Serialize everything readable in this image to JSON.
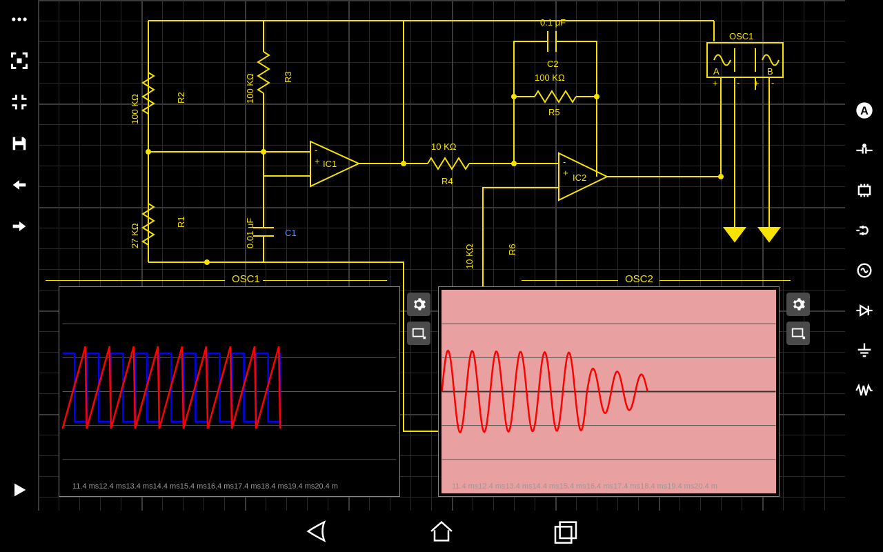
{
  "circuit": {
    "wire_color": "#f7e200",
    "components": {
      "R1": {
        "label": "R1",
        "value": "27 KΩ"
      },
      "R2": {
        "label": "R2",
        "value": "100 KΩ"
      },
      "R3": {
        "label": "R3",
        "value": "100 KΩ"
      },
      "R4": {
        "label": "R4",
        "value": "10 KΩ"
      },
      "R5": {
        "label": "R5",
        "value": "100 KΩ"
      },
      "R6": {
        "label": "R6",
        "value": "10 KΩ"
      },
      "C1": {
        "label": "C1",
        "value": "0.01 μF"
      },
      "C2": {
        "label": "C2",
        "value": "0.1 μF"
      },
      "IC1": {
        "label": "IC1"
      },
      "IC2": {
        "label": "IC2"
      },
      "OSC1": {
        "label": "OSC1",
        "ch_a": "A",
        "ch_b": "B",
        "plus": "+",
        "minus": "-"
      }
    }
  },
  "osc1": {
    "title": "OSC1",
    "bg": "#000000",
    "trace_a_color": "#ff0000",
    "trace_b_color": "#0000ff",
    "grid_color": "#555555",
    "time_labels": [
      "11.4 ms",
      "12.4 ms",
      "13.4 ms",
      "14.4 ms",
      "15.4 ms",
      "16.4 ms",
      "17.4 ms",
      "18.4 ms",
      "19.4 ms",
      "20.4 m"
    ],
    "sawtooth_cycles": 8.5,
    "square_cycles": 8.5,
    "amplitude": 50
  },
  "osc2": {
    "title": "OSC2",
    "bg": "#e8a0a0",
    "trace_color": "#ff0000",
    "grid_color": "#555555",
    "time_labels": [
      "11.4 ms",
      "12.4 ms",
      "13.4 ms",
      "14.4 ms",
      "15.4 ms",
      "16.4 ms",
      "17.4 ms",
      "18.4 ms",
      "19.4 ms",
      "20.4 m"
    ],
    "sine_cycles": 8.5,
    "amplitude": 60,
    "decay": true
  },
  "left_tools": [
    {
      "name": "more-icon"
    },
    {
      "name": "fullscreen-icon"
    },
    {
      "name": "collapse-icon"
    },
    {
      "name": "save-icon"
    },
    {
      "name": "undo-icon"
    },
    {
      "name": "redo-icon"
    }
  ],
  "right_tools": [
    {
      "name": "ammeter-icon"
    },
    {
      "name": "wire-icon"
    },
    {
      "name": "chip-icon"
    },
    {
      "name": "plug-icon"
    },
    {
      "name": "source-icon"
    },
    {
      "name": "diode-icon"
    },
    {
      "name": "ground-icon"
    },
    {
      "name": "signal-icon"
    }
  ]
}
